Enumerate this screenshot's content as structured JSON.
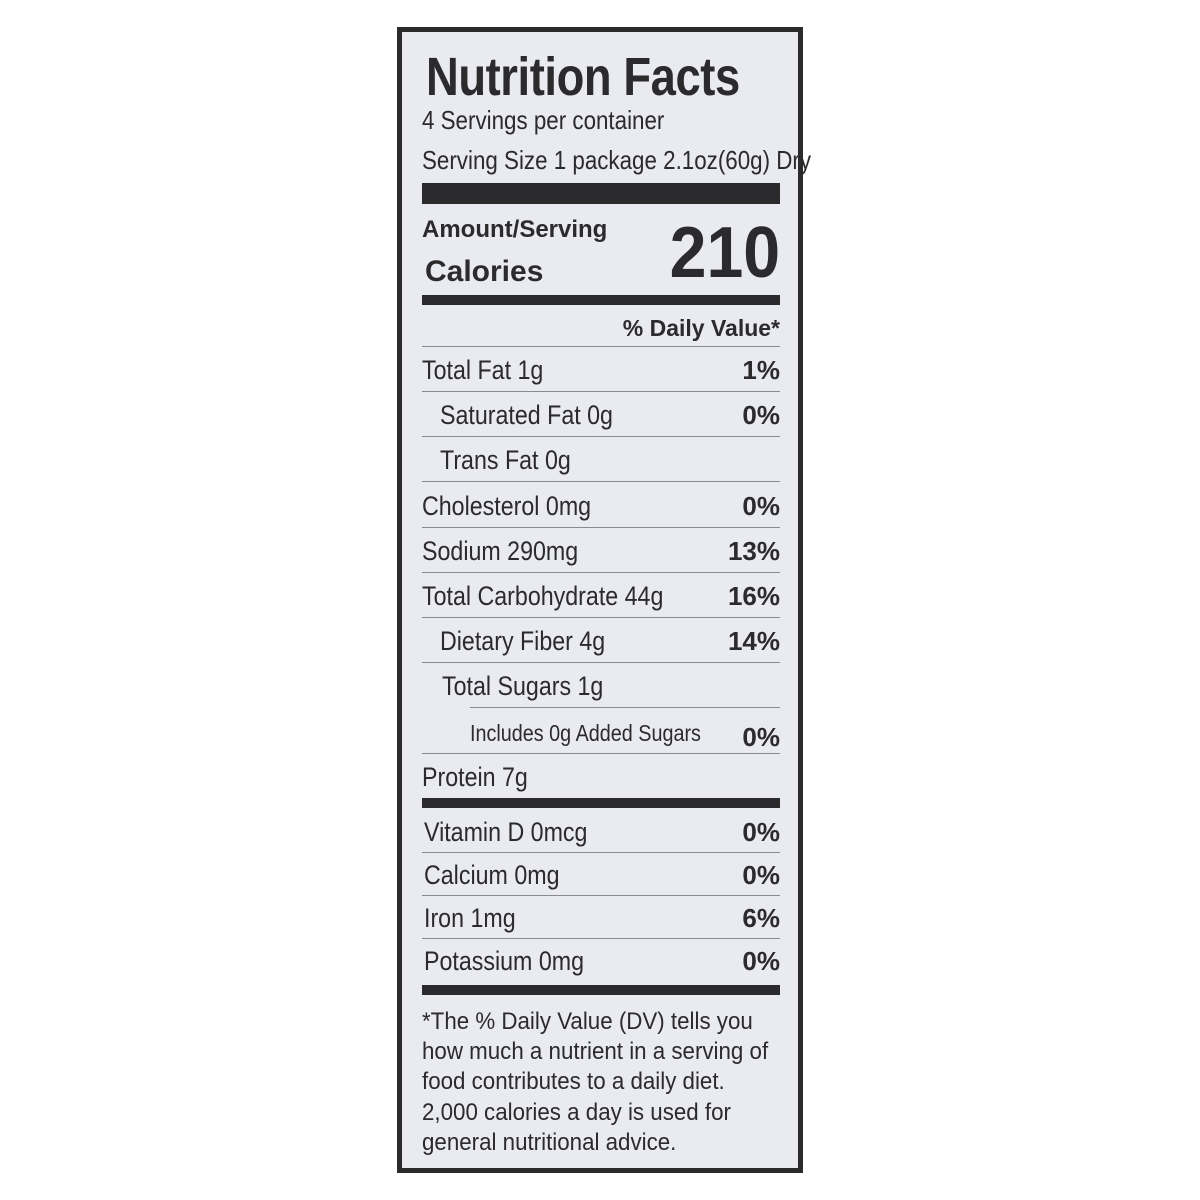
{
  "label": {
    "title": "Nutrition Facts",
    "servings": "4 Servings per container",
    "serving_size": "Serving Size 1 package 2.1oz(60g) Dry",
    "amount_per_serving": "Amount/Serving",
    "calories_label": "Calories",
    "calories_value": "210",
    "daily_value_header": "% Daily Value*",
    "nutrients": [
      {
        "name": "Total Fat 1g",
        "dv": "1%"
      },
      {
        "name": "Saturated Fat 0g",
        "dv": "0%"
      },
      {
        "name": "Trans Fat 0g",
        "dv": ""
      },
      {
        "name": "Cholesterol 0mg",
        "dv": "0%"
      },
      {
        "name": "Sodium 290mg",
        "dv": "13%"
      },
      {
        "name": "Total Carbohydrate 44g",
        "dv": "16%"
      },
      {
        "name": "Dietary Fiber 4g",
        "dv": "14%"
      },
      {
        "name": "Total Sugars 1g",
        "dv": ""
      },
      {
        "name": "Includes 0g Added Sugars",
        "dv": "0%"
      },
      {
        "name": "Protein 7g",
        "dv": ""
      }
    ],
    "vitamins": [
      {
        "name": "Vitamin D 0mcg",
        "dv": "0%"
      },
      {
        "name": "Calcium 0mg",
        "dv": "0%"
      },
      {
        "name": "Iron 1mg",
        "dv": "6%"
      },
      {
        "name": "Potassium 0mg",
        "dv": "0%"
      }
    ],
    "footnote": "*The % Daily Value (DV) tells you how much a nutrient in a serving of food contributes to a daily diet. 2,000 calories a day is used for general nutritional advice."
  },
  "colors": {
    "ink": "#2b2a2c",
    "background": "#e9ebf1"
  }
}
